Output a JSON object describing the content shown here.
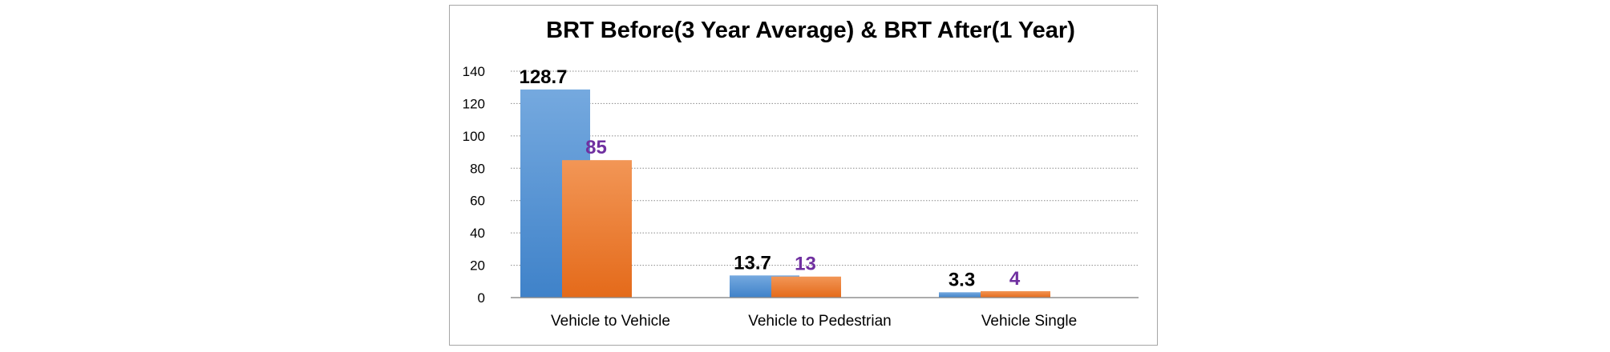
{
  "chart_data": {
    "type": "bar",
    "title": "BRT Before(3 Year Average) & BRT After(1 Year)",
    "categories": [
      "Vehicle to Vehicle",
      "Vehicle to Pedestrian",
      "Vehicle Single"
    ],
    "series": [
      {
        "values": [
          128.7,
          13.7,
          3.3
        ],
        "data_labels": [
          "128.7",
          "13.7",
          "3.3"
        ],
        "color_light": "#75a9df",
        "color_dark": "#3f82c9",
        "label_color": "#000000"
      },
      {
        "values": [
          85,
          13,
          4
        ],
        "data_labels": [
          "85",
          "13",
          "4"
        ],
        "color_light": "#f29656",
        "color_dark": "#e46a1a",
        "label_color": "#7030a0"
      }
    ],
    "ylim": [
      0,
      140
    ],
    "yticks": [
      "0",
      "20",
      "40",
      "60",
      "80",
      "100",
      "120",
      "140"
    ],
    "xlabel": "",
    "ylabel": "",
    "grid": true,
    "legend": "none"
  }
}
